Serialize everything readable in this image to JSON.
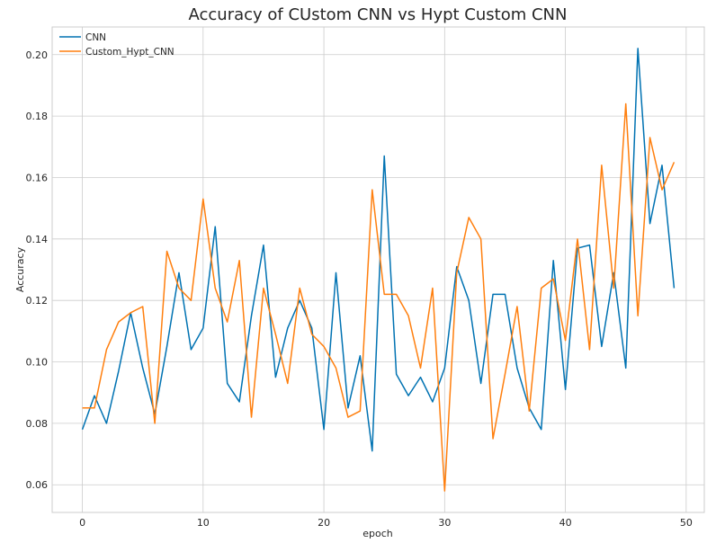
{
  "chart_data": {
    "type": "line",
    "title": "Accuracy of CUstom CNN vs Hypt Custom CNN",
    "xlabel": "epoch",
    "ylabel": "Accuracy",
    "xlim": [
      -2.5,
      51.5
    ],
    "ylim": [
      0.051,
      0.209
    ],
    "xticks": [
      0,
      10,
      20,
      30,
      40,
      50
    ],
    "yticks": [
      0.06,
      0.08,
      0.1,
      0.12,
      0.14,
      0.16,
      0.18,
      0.2
    ],
    "xtick_labels": [
      "0",
      "10",
      "20",
      "30",
      "40",
      "50"
    ],
    "ytick_labels": [
      "0.06",
      "0.08",
      "0.10",
      "0.12",
      "0.14",
      "0.16",
      "0.18",
      "0.20"
    ],
    "grid": true,
    "legend_position": "top-left",
    "x": [
      0,
      1,
      2,
      3,
      4,
      5,
      6,
      7,
      8,
      9,
      10,
      11,
      12,
      13,
      14,
      15,
      16,
      17,
      18,
      19,
      20,
      21,
      22,
      23,
      24,
      25,
      26,
      27,
      28,
      29,
      30,
      31,
      32,
      33,
      34,
      35,
      36,
      37,
      38,
      39,
      40,
      41,
      42,
      43,
      44,
      45,
      46,
      47,
      48,
      49
    ],
    "series": [
      {
        "name": "CNN",
        "color": "#0072b2",
        "values": [
          0.078,
          0.089,
          0.08,
          0.097,
          0.116,
          0.098,
          0.083,
          0.105,
          0.129,
          0.104,
          0.111,
          0.144,
          0.093,
          0.087,
          0.115,
          0.138,
          0.095,
          0.111,
          0.12,
          0.111,
          0.078,
          0.129,
          0.085,
          0.102,
          0.071,
          0.167,
          0.096,
          0.089,
          0.095,
          0.087,
          0.098,
          0.131,
          0.12,
          0.093,
          0.122,
          0.122,
          0.098,
          0.085,
          0.078,
          0.133,
          0.091,
          0.137,
          0.138,
          0.105,
          0.129,
          0.098,
          0.202,
          0.145,
          0.164,
          0.124
        ]
      },
      {
        "name": "Custom_Hypt_CNN",
        "color": "#ff7f0e",
        "values": [
          0.085,
          0.085,
          0.104,
          0.113,
          0.116,
          0.118,
          0.08,
          0.136,
          0.124,
          0.12,
          0.153,
          0.124,
          0.113,
          0.133,
          0.082,
          0.124,
          0.109,
          0.093,
          0.124,
          0.109,
          0.105,
          0.098,
          0.082,
          0.084,
          0.156,
          0.122,
          0.122,
          0.115,
          0.098,
          0.124,
          0.058,
          0.129,
          0.147,
          0.14,
          0.075,
          0.096,
          0.118,
          0.084,
          0.124,
          0.127,
          0.107,
          0.14,
          0.104,
          0.164,
          0.124,
          0.184,
          0.115,
          0.173,
          0.156,
          0.165
        ]
      }
    ]
  }
}
